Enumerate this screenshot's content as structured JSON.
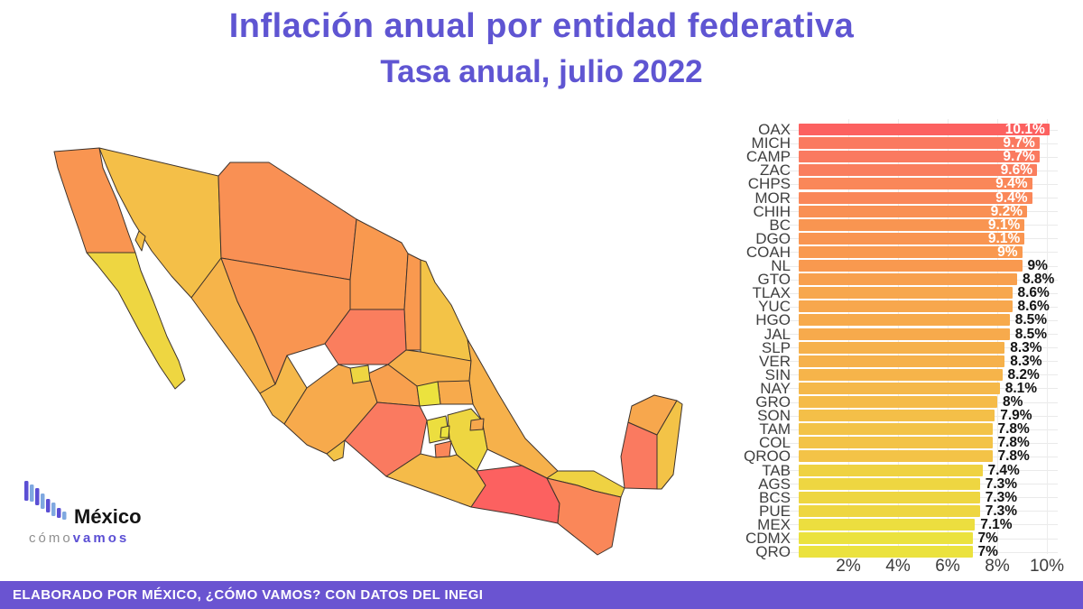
{
  "title": {
    "line1": "Inflación anual por entidad federativa",
    "line2": "Tasa anual, julio 2022",
    "color": "#5f55d2"
  },
  "footer": {
    "text": "ELABORADO POR MÉXICO, ¿CÓMO VAMOS? CON DATOS DEL INEGI",
    "bg": "#6a54d1",
    "text_color": "#ffffff"
  },
  "logo": {
    "name": "México",
    "tagline_part1": "cómo",
    "tagline_part2": "vamos",
    "name_color": "#141414",
    "tagline_part1_color": "#8f8f8f",
    "tagline_part2_color": "#5b4fd4",
    "icon_color_a": "#5b4fd4",
    "icon_color_b": "#7fa8e0"
  },
  "chart_data": {
    "type": "bar",
    "orientation": "horizontal",
    "title": "Inflación anual por entidad federativa — Tasa anual, julio 2022",
    "xlabel": "",
    "ylabel": "",
    "grid": true,
    "legend": false,
    "xlim": [
      0,
      10.5
    ],
    "x_tick_values": [
      2,
      4,
      6,
      8,
      10
    ],
    "x_ticks": [
      "2%",
      "4%",
      "6%",
      "8%",
      "10%"
    ],
    "categories": [
      "OAX",
      "MICH",
      "CAMP",
      "ZAC",
      "CHPS",
      "MOR",
      "CHIH",
      "BC",
      "DGO",
      "COAH",
      "NL",
      "GTO",
      "TLAX",
      "YUC",
      "HGO",
      "JAL",
      "SLP",
      "VER",
      "SIN",
      "NAY",
      "GRO",
      "SON",
      "TAM",
      "COL",
      "QROO",
      "TAB",
      "AGS",
      "BCS",
      "PUE",
      "MEX",
      "CDMX",
      "QRO"
    ],
    "values": [
      10.1,
      9.7,
      9.7,
      9.6,
      9.4,
      9.4,
      9.2,
      9.1,
      9.1,
      9.0,
      9.0,
      8.8,
      8.6,
      8.6,
      8.5,
      8.5,
      8.3,
      8.3,
      8.2,
      8.1,
      8.0,
      7.9,
      7.8,
      7.8,
      7.8,
      7.4,
      7.3,
      7.3,
      7.3,
      7.1,
      7.0,
      7.0
    ],
    "bar_labels": [
      "10.1%",
      "9.7%",
      "9.7%",
      "9.6%",
      "9.4%",
      "9.4%",
      "9.2%",
      "9.1%",
      "9.1%",
      "9%",
      "9%",
      "8.8%",
      "8.6%",
      "8.6%",
      "8.5%",
      "8.5%",
      "8.3%",
      "8.3%",
      "8.2%",
      "8.1%",
      "8%",
      "7.9%",
      "7.8%",
      "7.8%",
      "7.8%",
      "7.4%",
      "7.3%",
      "7.3%",
      "7.3%",
      "7.1%",
      "7%",
      "7%"
    ],
    "labels_inside_top_n": 10,
    "color_scale": [
      {
        "value": 7.0,
        "color": "#EBE23E"
      },
      {
        "value": 8.0,
        "color": "#F5BB49"
      },
      {
        "value": 9.0,
        "color": "#F9994F"
      },
      {
        "value": 9.7,
        "color": "#FA7A60"
      },
      {
        "value": 10.1,
        "color": "#FC6160"
      }
    ]
  },
  "map": {
    "description": "Choropleth of Mexico, states shaded by annual inflation rate (same color scale as bar chart)",
    "stroke_color": "#3e332c",
    "sea_color": "#ffffff"
  }
}
